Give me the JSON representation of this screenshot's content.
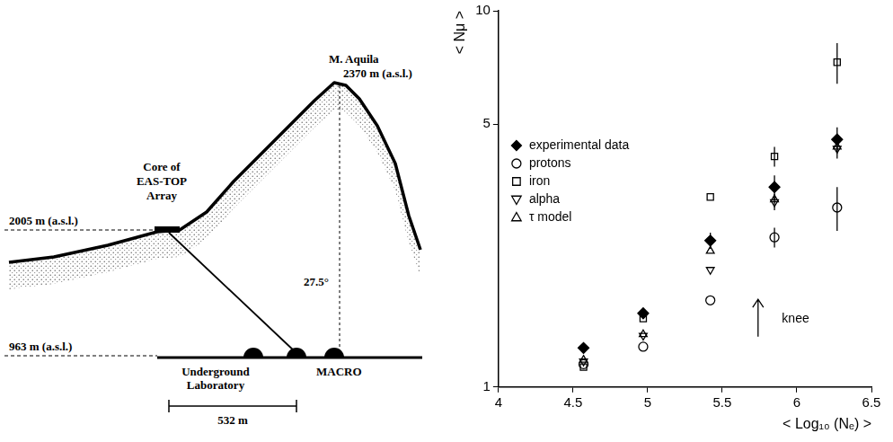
{
  "diagram": {
    "peak": {
      "name": "M. Aquila",
      "altitude": "2370 m (a.s.l.)"
    },
    "array": {
      "label": [
        "Core of",
        "EAS-TOP",
        "Array"
      ],
      "altitude": "2005 m (a.s.l.)"
    },
    "angle": "27.5°",
    "laboratory": {
      "label": [
        "Underground",
        "Laboratory"
      ],
      "altitude": "963 m (a.s.l.)"
    },
    "detector": "MACRO",
    "distance": "532 m"
  },
  "chart_data": {
    "type": "scatter",
    "xlabel": "< Log₁₀ (Nₑ) >",
    "ylabel": "< Nμ >",
    "log": "y",
    "grid": false,
    "legend": "upper left",
    "xlim": [
      4,
      6.5
    ],
    "xticks": [
      4,
      4.5,
      5,
      5.5,
      6,
      6.5
    ],
    "ylim": [
      1,
      10
    ],
    "yticks": [
      1,
      5,
      10
    ],
    "x": [
      4.57,
      4.97,
      5.42,
      5.85,
      6.27
    ],
    "series": [
      {
        "name": "experimental data",
        "color": "#000000",
        "marker": "filled_diamond",
        "values": [
          1.27,
          1.57,
          2.45,
          3.4,
          4.55
        ],
        "errors": [
          null,
          null,
          0.12,
          0.25,
          0.35
        ]
      },
      {
        "name": "protons",
        "color": "#000000",
        "marker": "open_circle",
        "values": [
          1.15,
          1.28,
          1.7,
          2.5,
          3.0
        ],
        "errors": [
          null,
          null,
          null,
          0.15,
          0.4
        ]
      },
      {
        "name": "iron",
        "color": "#000000",
        "marker": "open_square",
        "values": [
          1.13,
          1.52,
          3.2,
          4.1,
          7.3
        ],
        "errors": [
          null,
          null,
          null,
          0.25,
          0.9
        ]
      },
      {
        "name": "alpha",
        "color": "#000000",
        "marker": "open_triangle_down",
        "values": [
          1.17,
          1.37,
          2.05,
          3.1,
          4.3
        ],
        "errors": [
          null,
          null,
          null,
          0.15,
          0.25
        ]
      },
      {
        "name": "τ model",
        "color": "#000000",
        "marker": "open_triangle_up",
        "values": [
          1.18,
          1.38,
          2.3,
          3.15,
          4.35
        ],
        "errors": [
          null,
          null,
          null,
          null,
          null
        ]
      }
    ],
    "annotations": [
      {
        "text": "knee",
        "x": 5.9,
        "y": 1.52,
        "arrow_x": 5.74,
        "arrow_from": 1.36,
        "arrow_to": 1.71
      }
    ]
  }
}
